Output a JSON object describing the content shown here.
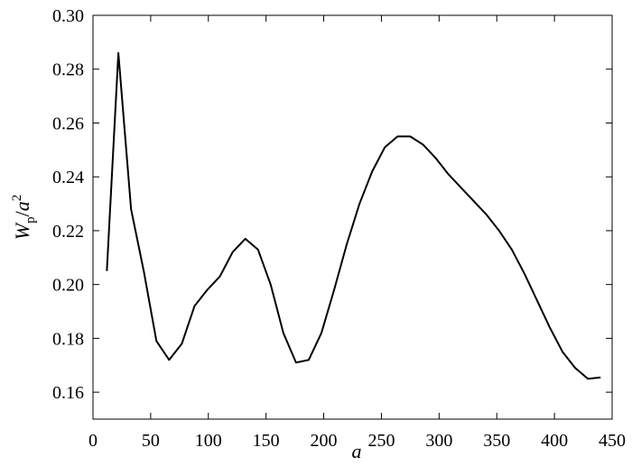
{
  "chart_data": {
    "type": "line",
    "xlabel": "a",
    "ylabel": {
      "main": "W",
      "sub": "p",
      "slash": "/",
      "var": "a",
      "sup": "2"
    },
    "x": [
      12,
      22,
      33,
      44,
      55,
      66,
      77,
      88,
      99,
      110,
      121,
      132,
      143,
      154,
      165,
      176,
      187,
      198,
      209,
      220,
      231,
      242,
      253,
      264,
      275,
      286,
      297,
      308,
      319,
      330,
      341,
      352,
      363,
      374,
      385,
      396,
      407,
      418,
      429,
      440
    ],
    "series": [
      {
        "color": "#000000",
        "values": [
          0.205,
          0.286,
          0.228,
          0.205,
          0.179,
          0.172,
          0.178,
          0.192,
          0.198,
          0.203,
          0.212,
          0.217,
          0.213,
          0.2,
          0.182,
          0.171,
          0.172,
          0.182,
          0.198,
          0.215,
          0.23,
          0.242,
          0.251,
          0.255,
          0.255,
          0.252,
          0.247,
          0.241,
          0.236,
          0.231,
          0.226,
          0.22,
          0.213,
          0.204,
          0.194,
          0.184,
          0.175,
          0.169,
          0.165,
          0.1655
        ]
      }
    ],
    "xlim": [
      0,
      450
    ],
    "xticks": [
      0,
      50,
      100,
      150,
      200,
      250,
      300,
      350,
      400,
      450
    ],
    "ylim": [
      0.15,
      0.3
    ],
    "yticks": [
      0.16,
      0.18,
      {
        "value": 0.2,
        "label": "0.20"
      },
      0.22,
      0.24,
      0.26,
      0.28,
      {
        "value": 0.3,
        "label": "0.30"
      }
    ]
  }
}
